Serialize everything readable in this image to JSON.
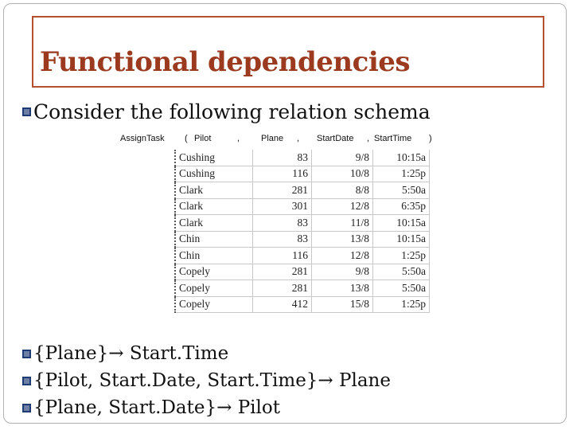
{
  "slide": {
    "title": "Functional dependencies",
    "intro": "Consider the following relation schema"
  },
  "relation": {
    "name": "AssignTask",
    "open_paren": "(",
    "close_paren": ")",
    "comma": ",",
    "columns": [
      "Pilot",
      "Plane",
      "StartDate",
      "StartTime"
    ],
    "rows": [
      [
        "Cushing",
        "83",
        "9/8",
        "10:15a"
      ],
      [
        "Cushing",
        "116",
        "10/8",
        "1:25p"
      ],
      [
        "Clark",
        "281",
        "8/8",
        "5:50a"
      ],
      [
        "Clark",
        "301",
        "12/8",
        "6:35p"
      ],
      [
        "Clark",
        "83",
        "11/8",
        "10:15a"
      ],
      [
        "Chin",
        "83",
        "13/8",
        "10:15a"
      ],
      [
        "Chin",
        "116",
        "12/8",
        "1:25p"
      ],
      [
        "Copely",
        "281",
        "9/8",
        "5:50a"
      ],
      [
        "Copely",
        "281",
        "13/8",
        "5:50a"
      ],
      [
        "Copely",
        "412",
        "15/8",
        "1:25p"
      ]
    ]
  },
  "dependencies": [
    "{Plane}→ Start.Time",
    "{Pilot, Start.Date, Start.Time}→ Plane",
    "{Plane, Start.Date}→ Pilot"
  ],
  "colors": {
    "title": "#9b3a1e",
    "title_border": "#b5502c",
    "bullet": "#1f3b73"
  },
  "icons": {
    "bullet": "square-bullet-icon"
  }
}
